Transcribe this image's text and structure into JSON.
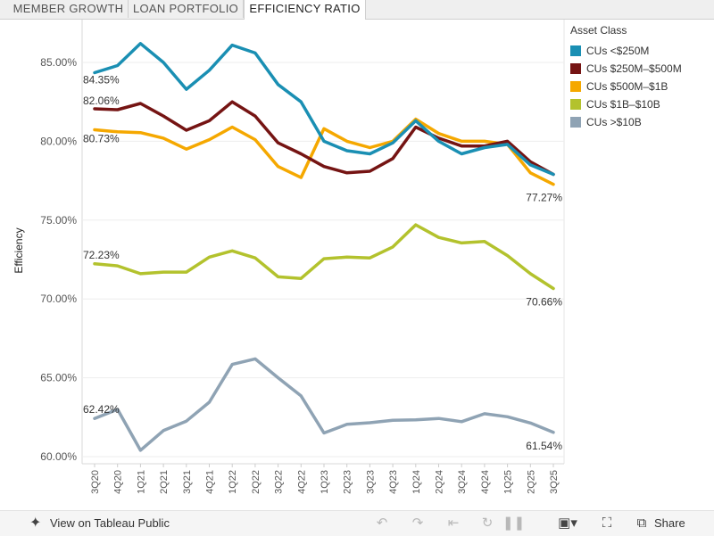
{
  "tabs": [
    "MEMBER GROWTH",
    "LOAN PORTFOLIO",
    "EFFICIENCY RATIO"
  ],
  "active_tab": 2,
  "footer": {
    "view_label": "View on Tableau Public",
    "share_label": "Share",
    "icons": [
      "tableau-logo-icon",
      "undo-icon",
      "redo-icon",
      "revert-icon",
      "refresh-icon",
      "pause-icon",
      "download-icon",
      "fullscreen-icon",
      "share-icon"
    ]
  },
  "legend": {
    "title": "Asset Class"
  },
  "chart_data": {
    "type": "line",
    "title": "",
    "xlabel": "",
    "ylabel": "Efficiency",
    "ylim": [
      59.4,
      87.0
    ],
    "yticks": [
      "85.00%",
      "80.00%",
      "75.00%",
      "70.00%",
      "65.00%",
      "60.00%"
    ],
    "ytick_values": [
      85,
      80,
      75,
      70,
      65,
      60
    ],
    "grid": true,
    "legend_position": "right",
    "categories": [
      "3Q20",
      "4Q20",
      "1Q21",
      "2Q21",
      "3Q21",
      "4Q21",
      "1Q22",
      "2Q22",
      "3Q22",
      "4Q22",
      "1Q23",
      "2Q23",
      "3Q23",
      "4Q23",
      "1Q24",
      "2Q24",
      "3Q24",
      "4Q24",
      "1Q25",
      "2Q25",
      "3Q25"
    ],
    "series": [
      {
        "name": "CUs <$250M",
        "color": "#1a8fb3",
        "values": [
          84.35,
          84.8,
          86.2,
          85.0,
          83.3,
          84.5,
          86.1,
          85.6,
          83.6,
          82.5,
          80.0,
          79.4,
          79.2,
          79.9,
          81.3,
          80.0,
          79.2,
          79.6,
          79.8,
          78.5,
          77.9
        ],
        "start_label": "84.35%",
        "end_label": ""
      },
      {
        "name": "CUs $250M–$500M",
        "color": "#751413",
        "values": [
          82.06,
          82.0,
          82.4,
          81.6,
          80.7,
          81.3,
          82.5,
          81.6,
          79.9,
          79.2,
          78.4,
          78.0,
          78.1,
          78.9,
          80.9,
          80.2,
          79.7,
          79.7,
          80.0,
          78.7,
          77.9
        ],
        "start_label": "82.06%",
        "end_label": ""
      },
      {
        "name": "CUs $500M–$1B",
        "color": "#f5a800",
        "values": [
          80.73,
          80.6,
          80.55,
          80.2,
          79.5,
          80.1,
          80.9,
          80.1,
          78.4,
          77.7,
          80.8,
          80.0,
          79.6,
          80.0,
          81.4,
          80.5,
          80.0,
          80.0,
          79.8,
          78.0,
          77.27
        ],
        "start_label": "80.73%",
        "end_label": "77.27%"
      },
      {
        "name": "CUs $1B–$10B",
        "color": "#b3c22d",
        "values": [
          72.23,
          72.1,
          71.6,
          71.7,
          71.7,
          72.65,
          73.05,
          72.6,
          71.4,
          71.3,
          72.55,
          72.65,
          72.6,
          73.3,
          74.7,
          73.9,
          73.55,
          73.65,
          72.75,
          71.6,
          70.66
        ],
        "start_label": "72.23%",
        "end_label": "70.66%"
      },
      {
        "name": "CUs >$10B",
        "color": "#8fa3b4",
        "values": [
          62.42,
          63.0,
          60.4,
          61.65,
          62.25,
          63.45,
          65.85,
          66.2,
          65.0,
          63.85,
          61.5,
          62.05,
          62.15,
          62.3,
          62.33,
          62.42,
          62.22,
          62.72,
          62.53,
          62.13,
          61.54
        ],
        "start_label": "62.42%",
        "end_label": "61.54%"
      }
    ]
  }
}
